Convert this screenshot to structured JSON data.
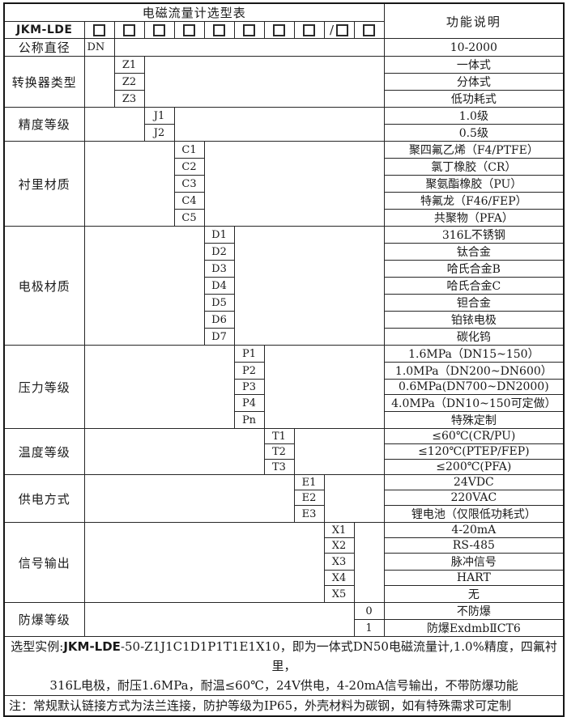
{
  "table": {
    "title": "电磁流量计选型表",
    "function_header": "功能说明",
    "model_prefix": "JKM-LDE",
    "slash": "/",
    "checkbox_count": 10,
    "slash_box_index": 9,
    "sections": [
      {
        "label": "公称直径",
        "code_col": 1,
        "code_align": "left",
        "rows": [
          {
            "code": "DN",
            "desc": "10-2000"
          }
        ]
      },
      {
        "label": "转换器类型",
        "code_col": 2,
        "rows": [
          {
            "code": "Z1",
            "desc": "一体式"
          },
          {
            "code": "Z2",
            "desc": "分体式"
          },
          {
            "code": "Z3",
            "desc": "低功耗式"
          }
        ]
      },
      {
        "label": "精度等级",
        "code_col": 3,
        "rows": [
          {
            "code": "J1",
            "desc": "1.0级"
          },
          {
            "code": "J2",
            "desc": "0.5级"
          }
        ]
      },
      {
        "label": "衬里材质",
        "code_col": 4,
        "rows": [
          {
            "code": "C1",
            "desc": "聚四氟乙烯（F4/PTFE）"
          },
          {
            "code": "C2",
            "desc": "氯丁橡胶（CR）"
          },
          {
            "code": "C3",
            "desc": "聚氨酯橡胶（PU）"
          },
          {
            "code": "C4",
            "desc": "特氟龙（F46/FEP）"
          },
          {
            "code": "C5",
            "desc": "共聚物（PFA）"
          }
        ]
      },
      {
        "label": "电极材质",
        "code_col": 5,
        "rows": [
          {
            "code": "D1",
            "desc": "316L不锈钢"
          },
          {
            "code": "D2",
            "desc": "钛合金"
          },
          {
            "code": "D3",
            "desc": "哈氏合金B"
          },
          {
            "code": "D4",
            "desc": "哈氏合金C"
          },
          {
            "code": "D5",
            "desc": "钽合金"
          },
          {
            "code": "D6",
            "desc": "铂铱电极"
          },
          {
            "code": "D7",
            "desc": "碳化钨"
          }
        ]
      },
      {
        "label": "压力等级",
        "code_col": 6,
        "rows": [
          {
            "code": "P1",
            "desc": "1.6MPa（DN15~150）"
          },
          {
            "code": "P2",
            "desc": "1.0MPa（DN200~DN600）"
          },
          {
            "code": "P3",
            "desc": "0.6MPa(DN700~DN2000)"
          },
          {
            "code": "P4",
            "desc": "4.0MPa（DN10~150可定做）"
          },
          {
            "code": "Pn",
            "desc": "特殊定制"
          }
        ]
      },
      {
        "label": "温度等级",
        "code_col": 7,
        "rows": [
          {
            "code": "T1",
            "desc": "≤60℃(CR/PU)"
          },
          {
            "code": "T2",
            "desc": "≤120℃(PTEP/FEP)"
          },
          {
            "code": "T3",
            "desc": "≤200℃(PFA)"
          }
        ]
      },
      {
        "label": "供电方式",
        "code_col": 8,
        "rows": [
          {
            "code": "E1",
            "desc": "24VDC"
          },
          {
            "code": "E2",
            "desc": "220VAC"
          },
          {
            "code": "E3",
            "desc": "锂电池（仅限低功耗式）"
          }
        ]
      },
      {
        "label": "信号输出",
        "code_col": 9,
        "rows": [
          {
            "code": "X1",
            "desc": "4-20mA"
          },
          {
            "code": "X2",
            "desc": "RS-485"
          },
          {
            "code": "X3",
            "desc": "脉冲信号"
          },
          {
            "code": "X4",
            "desc": "HART"
          },
          {
            "code": "X5",
            "desc": "无"
          }
        ]
      },
      {
        "label": "防爆等级",
        "code_col": 10,
        "rows": [
          {
            "code": "0",
            "desc": "不防爆"
          },
          {
            "code": "1",
            "desc": "防爆ExdmbⅡCT6"
          }
        ]
      }
    ]
  },
  "footer": {
    "example_label": "选型实例:",
    "example_model": "JKM-LDE",
    "example_rest": "-50-Z1J1C1D1P1T1E1X10，即为一体式DN50电磁流量计,1.0%精度，四氟衬里，",
    "example_line2": "316L电极，耐压1.6MPa，耐温≤60℃，24V供电，4-20mA信号输出，不带防爆功能",
    "note": "注：常规默认链接方式为法兰连接，防护等级为IP65，外壳材料为碳钢，如有特殊需求可定制"
  },
  "colors": {
    "border": "#262626",
    "text": "#1a1a1a",
    "background": "#ffffff"
  }
}
